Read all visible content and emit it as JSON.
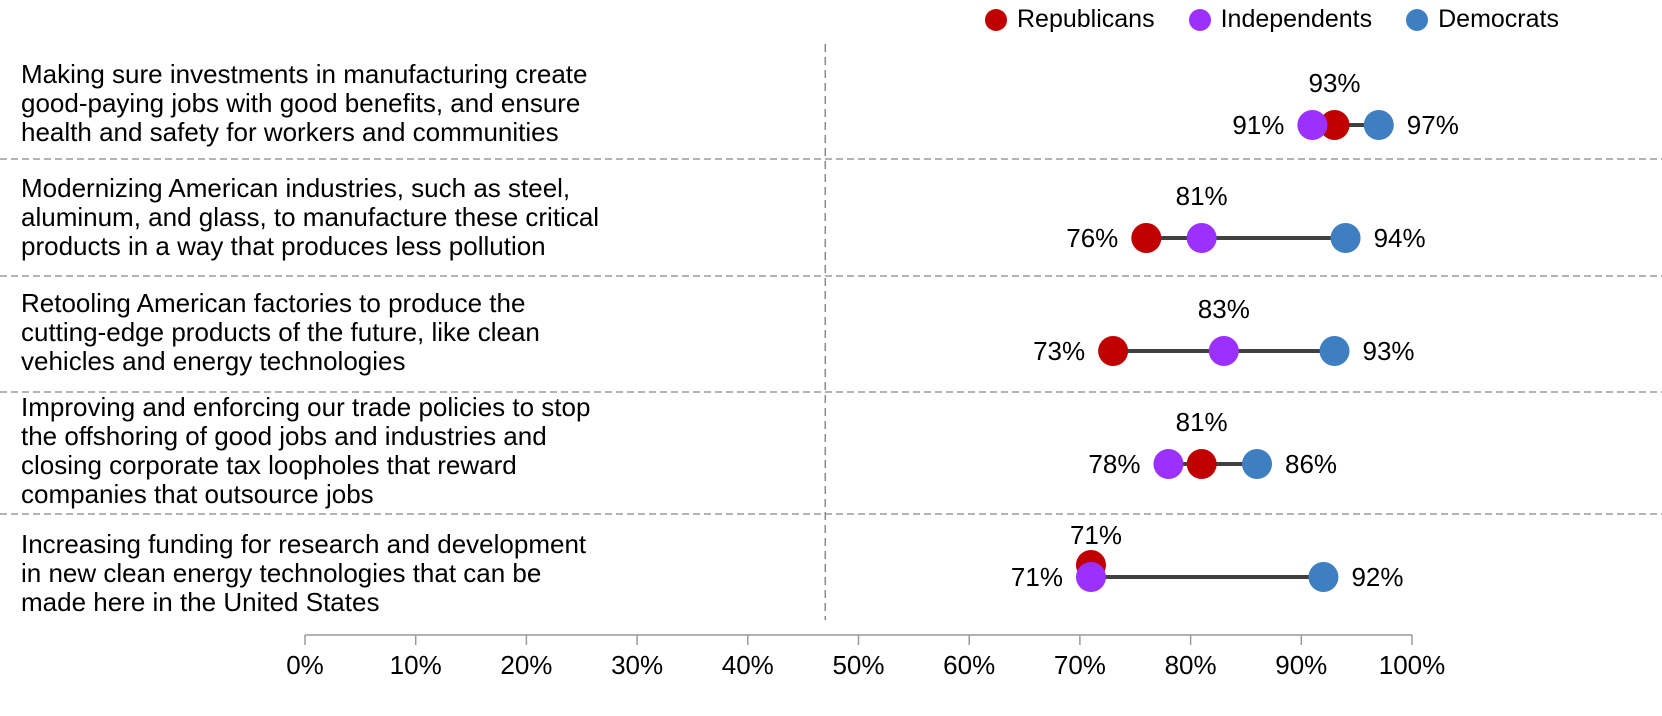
{
  "chart_data": {
    "type": "scatter",
    "xlim": [
      0,
      100
    ],
    "x_ticks": [
      "0%",
      "10%",
      "20%",
      "30%",
      "40%",
      "50%",
      "60%",
      "70%",
      "80%",
      "90%",
      "100%"
    ],
    "x_tick_values": [
      0,
      10,
      20,
      30,
      40,
      50,
      60,
      70,
      80,
      90,
      100
    ],
    "reference_line": 47,
    "legend_position": "top-right",
    "series": [
      {
        "name": "Republicans",
        "color": "#c00000"
      },
      {
        "name": "Independents",
        "color": "#9b30ff"
      },
      {
        "name": "Democrats",
        "color": "#3d7fc1"
      }
    ],
    "categories": [
      "Making sure investments in manufacturing create\ngood-paying jobs with good benefits, and ensure\nhealth and safety for workers and communities",
      "Modernizing American industries, such as steel,\naluminum, and glass, to manufacture these critical\nproducts in a way that produces less pollution",
      "Retooling American factories to produce the\ncutting-edge products of the future, like clean\nvehicles and energy technologies",
      "Improving and enforcing our trade policies to stop\nthe offshoring of good jobs and industries and\nclosing corporate tax loopholes that reward\ncompanies that outsource jobs",
      "Increasing funding for research and development\nin new clean energy technologies that can be\nmade here in the United States"
    ],
    "rows": [
      {
        "republicans": 93,
        "independents": 91,
        "democrats": 97,
        "labels": {
          "republicans": "93%",
          "independents": "91%",
          "democrats": "97%"
        }
      },
      {
        "republicans": 76,
        "independents": 81,
        "democrats": 94,
        "labels": {
          "republicans": "76%",
          "independents": "81%",
          "democrats": "94%"
        }
      },
      {
        "republicans": 73,
        "independents": 83,
        "democrats": 93,
        "labels": {
          "republicans": "73%",
          "independents": "83%",
          "democrats": "93%"
        }
      },
      {
        "republicans": 81,
        "independents": 78,
        "democrats": 86,
        "labels": {
          "republicans": "81%",
          "independents": "78%",
          "democrats": "86%"
        }
      },
      {
        "republicans": 71,
        "independents": 71,
        "democrats": 92,
        "labels": {
          "republicans": "71%",
          "independents": "71%",
          "democrats": "92%"
        }
      }
    ]
  }
}
